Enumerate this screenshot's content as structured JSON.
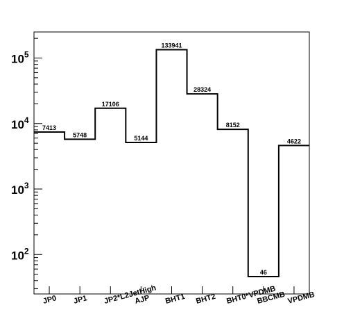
{
  "chart_data": {
    "type": "bar",
    "style": "histogram-step",
    "yscale": "log",
    "ylim": [
      25,
      250000
    ],
    "categories": [
      "JP0",
      "JP1",
      "JP2*L2JetHigh",
      "AJP",
      "BHT1",
      "BHT2",
      "BHT0*VPDMB",
      "BBCMB",
      "VPDMB"
    ],
    "values": [
      7413,
      5748,
      17106,
      5144,
      133941,
      28324,
      8152,
      46,
      4622
    ],
    "data_labels": [
      "7413",
      "5748",
      "17106",
      "5144",
      "133941",
      "28324",
      "8152",
      "46",
      "4622"
    ],
    "y_ticks": [
      {
        "value": 100,
        "base": "10",
        "exp": "2"
      },
      {
        "value": 1000,
        "base": "10",
        "exp": "3"
      },
      {
        "value": 10000,
        "base": "10",
        "exp": "4"
      },
      {
        "value": 100000,
        "base": "10",
        "exp": "5"
      }
    ],
    "grid": false,
    "line_color": "#000000",
    "title": "",
    "xlabel": "",
    "ylabel": ""
  }
}
